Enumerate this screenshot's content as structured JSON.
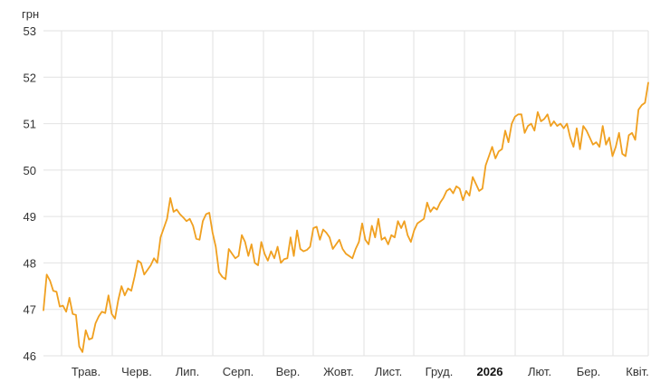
{
  "chart_data": {
    "type": "line",
    "ylabel": "грн",
    "ylim": [
      46,
      53
    ],
    "y_ticks": [
      "53",
      "52",
      "51",
      "50",
      "49",
      "48",
      "47",
      "46"
    ],
    "x_ticks": [
      {
        "label": "Трав.",
        "bold": false
      },
      {
        "label": "Черв.",
        "bold": false
      },
      {
        "label": "Лип.",
        "bold": false
      },
      {
        "label": "Серп.",
        "bold": false
      },
      {
        "label": "Вер.",
        "bold": false
      },
      {
        "label": "Жовт.",
        "bold": false
      },
      {
        "label": "Лист.",
        "bold": false
      },
      {
        "label": "Груд.",
        "bold": false
      },
      {
        "label": "2026",
        "bold": true
      },
      {
        "label": "Лют.",
        "bold": false
      },
      {
        "label": "Бер.",
        "bold": false
      },
      {
        "label": "Квіт.",
        "bold": false
      }
    ],
    "grid": true,
    "colors": {
      "line": "#F0A020",
      "grid": "#E2E2E2",
      "axis_text": "#333333"
    },
    "series": [
      {
        "values": [
          46.98,
          47.75,
          47.62,
          47.4,
          47.38,
          47.06,
          47.08,
          46.95,
          47.25,
          46.9,
          46.88,
          46.2,
          46.08,
          46.55,
          46.35,
          46.38,
          46.7,
          46.85,
          46.95,
          46.92,
          47.3,
          46.9,
          46.8,
          47.2,
          47.5,
          47.3,
          47.45,
          47.4,
          47.7,
          48.05,
          48.0,
          47.75,
          47.85,
          47.95,
          48.1,
          48.0,
          48.55,
          48.75,
          48.95,
          49.4,
          49.1,
          49.15,
          49.05,
          48.98,
          48.9,
          48.95,
          48.8,
          48.52,
          48.5,
          48.9,
          49.05,
          49.08,
          48.65,
          48.35,
          47.8,
          47.7,
          47.65,
          48.3,
          48.2,
          48.1,
          48.15,
          48.6,
          48.45,
          48.15,
          48.4,
          48.0,
          47.95,
          48.45,
          48.2,
          48.05,
          48.25,
          48.1,
          48.35,
          48.0,
          48.08,
          48.1,
          48.55,
          48.15,
          48.7,
          48.3,
          48.25,
          48.28,
          48.35,
          48.75,
          48.78,
          48.5,
          48.72,
          48.65,
          48.55,
          48.3,
          48.4,
          48.5,
          48.3,
          48.2,
          48.15,
          48.1,
          48.3,
          48.45,
          48.85,
          48.5,
          48.4,
          48.8,
          48.55,
          48.95,
          48.5,
          48.55,
          48.4,
          48.6,
          48.55,
          48.9,
          48.75,
          48.9,
          48.6,
          48.45,
          48.7,
          48.85,
          48.9,
          48.95,
          49.3,
          49.1,
          49.2,
          49.15,
          49.3,
          49.4,
          49.55,
          49.6,
          49.5,
          49.65,
          49.6,
          49.35,
          49.55,
          49.45,
          49.85,
          49.7,
          49.55,
          49.6,
          50.1,
          50.3,
          50.5,
          50.25,
          50.4,
          50.45,
          50.85,
          50.6,
          51.0,
          51.15,
          51.2,
          51.2,
          50.8,
          50.95,
          51.0,
          50.85,
          51.25,
          51.05,
          51.1,
          51.2,
          50.95,
          51.05,
          50.95,
          51.0,
          50.9,
          51.0,
          50.7,
          50.5,
          50.9,
          50.45,
          50.95,
          50.85,
          50.7,
          50.55,
          50.6,
          50.5,
          50.95,
          50.55,
          50.7,
          50.3,
          50.5,
          50.8,
          50.35,
          50.3,
          50.75,
          50.8,
          50.65,
          51.3,
          51.4,
          51.45,
          51.88
        ]
      }
    ]
  }
}
